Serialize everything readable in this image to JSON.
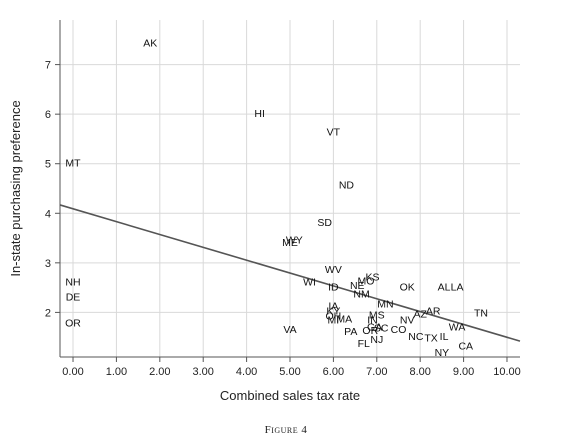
{
  "caption": "Figure 4",
  "chart_data": {
    "type": "scatter",
    "xlabel": "Combined sales tax rate",
    "ylabel": "In-state purchasing preference",
    "xlim": [
      -0.3,
      10.3
    ],
    "ylim": [
      1.1,
      7.9
    ],
    "x_ticks": [
      "0.00",
      "1.00",
      "2.00",
      "3.00",
      "4.00",
      "5.00",
      "6.00",
      "7.00",
      "8.00",
      "9.00",
      "10.00"
    ],
    "y_ticks": [
      "2",
      "3",
      "4",
      "5",
      "6",
      "7"
    ],
    "grid": true,
    "points": [
      {
        "label": "AK",
        "x": 1.78,
        "y": 7.45
      },
      {
        "label": "HI",
        "x": 4.3,
        "y": 6.02
      },
      {
        "label": "VT",
        "x": 6.0,
        "y": 5.65
      },
      {
        "label": "MT",
        "x": 0.0,
        "y": 5.02
      },
      {
        "label": "ND",
        "x": 6.3,
        "y": 4.58
      },
      {
        "label": "SD",
        "x": 5.8,
        "y": 3.82
      },
      {
        "label": "WY",
        "x": 5.1,
        "y": 3.47
      },
      {
        "label": "ME",
        "x": 5.0,
        "y": 3.42
      },
      {
        "label": "WV",
        "x": 6.0,
        "y": 2.88
      },
      {
        "label": "KS",
        "x": 6.9,
        "y": 2.72
      },
      {
        "label": "MO",
        "x": 6.75,
        "y": 2.64
      },
      {
        "label": "WI",
        "x": 5.45,
        "y": 2.62
      },
      {
        "label": "ID",
        "x": 6.0,
        "y": 2.52
      },
      {
        "label": "NE",
        "x": 6.55,
        "y": 2.55
      },
      {
        "label": "OK",
        "x": 7.7,
        "y": 2.52
      },
      {
        "label": "AL",
        "x": 8.55,
        "y": 2.52
      },
      {
        "label": "LA",
        "x": 8.85,
        "y": 2.52
      },
      {
        "label": "NM",
        "x": 6.65,
        "y": 2.38
      },
      {
        "label": "MN",
        "x": 7.2,
        "y": 2.18
      },
      {
        "label": "NH",
        "x": 0.0,
        "y": 2.62
      },
      {
        "label": "DE",
        "x": 0.0,
        "y": 2.32
      },
      {
        "label": "IA",
        "x": 6.0,
        "y": 2.14
      },
      {
        "label": "KY",
        "x": 6.0,
        "y": 2.04
      },
      {
        "label": "AR",
        "x": 8.3,
        "y": 2.04
      },
      {
        "label": "TN",
        "x": 9.4,
        "y": 2.0
      },
      {
        "label": "MS",
        "x": 7.0,
        "y": 1.96
      },
      {
        "label": "AZ",
        "x": 8.0,
        "y": 1.98
      },
      {
        "label": "NV",
        "x": 7.7,
        "y": 1.86
      },
      {
        "label": "OH",
        "x": 6.0,
        "y": 1.94
      },
      {
        "label": "MA",
        "x": 6.25,
        "y": 1.88
      },
      {
        "label": "MI",
        "x": 6.0,
        "y": 1.86
      },
      {
        "label": "IN",
        "x": 6.9,
        "y": 1.86
      },
      {
        "label": "OR",
        "x": 0.0,
        "y": 1.8
      },
      {
        "label": "WA",
        "x": 8.85,
        "y": 1.72
      },
      {
        "label": "GA",
        "x": 6.95,
        "y": 1.72
      },
      {
        "label": "SC",
        "x": 7.1,
        "y": 1.7
      },
      {
        "label": "CO",
        "x": 7.5,
        "y": 1.66
      },
      {
        "label": "VA",
        "x": 5.0,
        "y": 1.66
      },
      {
        "label": "PA",
        "x": 6.4,
        "y": 1.62
      },
      {
        "label": "OR",
        "x": 6.85,
        "y": 1.64
      },
      {
        "label": "NC",
        "x": 7.9,
        "y": 1.52
      },
      {
        "label": "TX",
        "x": 8.25,
        "y": 1.49
      },
      {
        "label": "IL",
        "x": 8.55,
        "y": 1.52
      },
      {
        "label": "NJ",
        "x": 7.0,
        "y": 1.46
      },
      {
        "label": "FL",
        "x": 6.7,
        "y": 1.38
      },
      {
        "label": "CA",
        "x": 9.05,
        "y": 1.33
      },
      {
        "label": "NY",
        "x": 8.5,
        "y": 1.2
      }
    ],
    "fit_line": {
      "x": [
        -0.5,
        10.3
      ],
      "y": [
        4.22,
        1.42
      ]
    }
  }
}
